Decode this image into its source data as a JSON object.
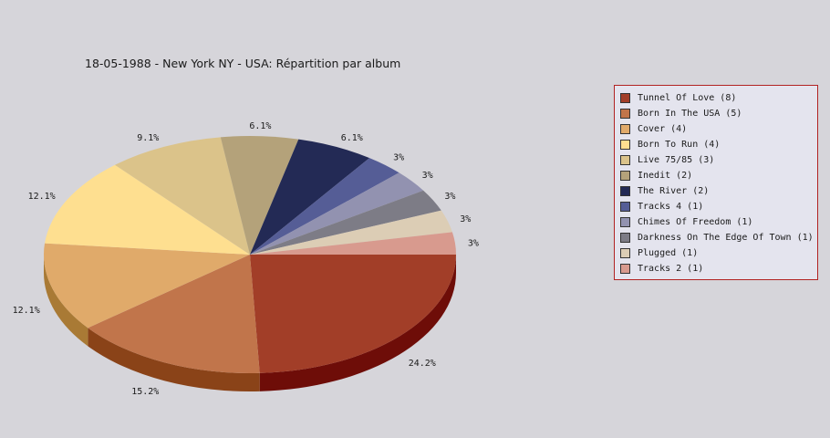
{
  "chart_data": {
    "type": "pie",
    "title": "18-05-1988 - New York NY - USA:  Répartition par album",
    "legend_position": "right",
    "slices": [
      {
        "label": "Tunnel Of Love",
        "legend_label": "Tunnel Of Love (8)",
        "value": 8,
        "pct_label": "24.2%",
        "color": "#a23e28",
        "side_color": "#6e0d08"
      },
      {
        "label": "Born In The USA",
        "legend_label": "Born In The USA (5)",
        "value": 5,
        "pct_label": "15.2%",
        "color": "#c1754b",
        "side_color": "#8a4318"
      },
      {
        "label": "Cover",
        "legend_label": "Cover (4)",
        "value": 4,
        "pct_label": "12.1%",
        "color": "#e0aa6a",
        "side_color": "#a97a35"
      },
      {
        "label": "Born To Run",
        "legend_label": "Born To Run (4)",
        "value": 4,
        "pct_label": "12.1%",
        "color": "#fedf90",
        "side_color": "#c5a85a"
      },
      {
        "label": "Live 75/85",
        "legend_label": "Live 75/85 (3)",
        "value": 3,
        "pct_label": "9.1%",
        "color": "#dbc38a",
        "side_color": "#a89055"
      },
      {
        "label": "Inedit",
        "legend_label": "Inedit (2)",
        "value": 2,
        "pct_label": "6.1%",
        "color": "#b4a27a",
        "side_color": "#837248"
      },
      {
        "label": "The River",
        "legend_label": "The River (2)",
        "value": 2,
        "pct_label": "6.1%",
        "color": "#232a55",
        "side_color": "#10143a"
      },
      {
        "label": "Tracks 4",
        "legend_label": "Tracks 4 (1)",
        "value": 1,
        "pct_label": "3%",
        "color": "#555d96",
        "side_color": "#2e3566"
      },
      {
        "label": "Chimes Of Freedom",
        "legend_label": "Chimes Of Freedom (1)",
        "value": 1,
        "pct_label": "3%",
        "color": "#9292b0",
        "side_color": "#63637e"
      },
      {
        "label": "Darkness On The Edge Of Town",
        "legend_label": "Darkness On The Edge Of Town (1)",
        "value": 1,
        "pct_label": "3%",
        "color": "#7d7c86",
        "side_color": "#52515a"
      },
      {
        "label": "Plugged",
        "legend_label": "Plugged (1)",
        "value": 1,
        "pct_label": "3%",
        "color": "#dccdb5",
        "side_color": "#a89a82"
      },
      {
        "label": "Tracks 2",
        "legend_label": "Tracks 2 (1)",
        "value": 1,
        "pct_label": "3%",
        "color": "#d89a8e",
        "side_color": "#a2675c"
      }
    ]
  }
}
